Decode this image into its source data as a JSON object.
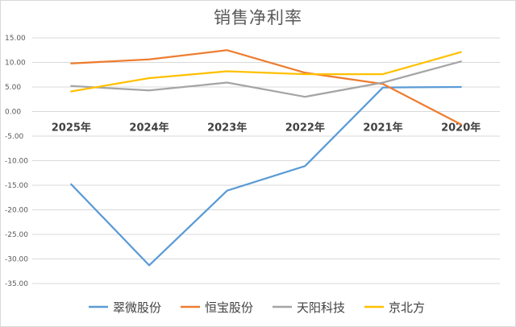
{
  "chart_data": {
    "type": "line",
    "title": "销售净利率",
    "categories": [
      "2025年",
      "2024年",
      "2023年",
      "2022年",
      "2021年",
      "2020年"
    ],
    "ylim": [
      -35,
      15
    ],
    "yticks": [
      "15.00",
      "10.00",
      "5.00",
      "0.00",
      "-5.00",
      "-10.00",
      "-15.00",
      "-20.00",
      "-25.00",
      "-30.00",
      "-35.00"
    ],
    "grid": true,
    "legend": "bottom",
    "series": [
      {
        "name": "翠微股份",
        "color": "#5b9bd5",
        "values": [
          -14.8,
          -31.3,
          -16.1,
          -11.1,
          4.9,
          5.0
        ]
      },
      {
        "name": "恒宝股份",
        "color": "#ed7d31",
        "values": [
          9.8,
          10.6,
          12.5,
          7.9,
          5.6,
          -2.6
        ]
      },
      {
        "name": "天阳科技",
        "color": "#a5a5a5",
        "values": [
          5.2,
          4.3,
          5.9,
          3.0,
          5.9,
          10.2
        ]
      },
      {
        "name": "京北方",
        "color": "#ffc000",
        "values": [
          4.1,
          6.8,
          8.2,
          7.6,
          7.6,
          12.1
        ]
      }
    ]
  }
}
